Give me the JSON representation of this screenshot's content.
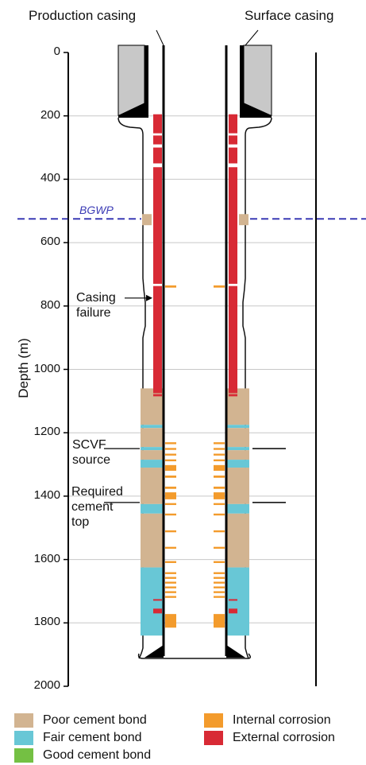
{
  "headers": {
    "left": "Production casing",
    "right": "Surface casing"
  },
  "axis": {
    "label": "Depth (m)",
    "ticks": [
      "0",
      "200",
      "400",
      "600",
      "800",
      "1000",
      "1200",
      "1400",
      "1600",
      "1800",
      "2000"
    ]
  },
  "annotations": {
    "bgwp": "BGWP",
    "casing_failure": [
      "Casing",
      "failure"
    ],
    "scvf": [
      "SCVF",
      "source"
    ],
    "cement_top": [
      "Required",
      "cement",
      "top"
    ]
  },
  "legend": {
    "poor": "Poor cement bond",
    "fair": "Fair cement bond",
    "good": "Good cement bond",
    "internal": "Internal corrosion",
    "external": "External corrosion"
  },
  "colors": {
    "poor": "#d2b491",
    "fair": "#68c7d6",
    "good": "#74c043",
    "internal": "#f39b2c",
    "external": "#d82a35",
    "bgwp": "#3b3bb5",
    "grey_cement": "#c8c8c8"
  },
  "depth_data": {
    "bgwp_depth_m": 525,
    "casing_failure_depth_m": 800,
    "scvf_source_depth_m": 1250,
    "required_cement_top_depth_m": 1420,
    "surface_casing_shoe_m": 200,
    "well_bottom_m": 1900,
    "cement_intervals_m": [
      {
        "top": 510,
        "bottom": 545,
        "bond": "poor"
      },
      {
        "top": 1060,
        "bottom": 1175,
        "bond": "poor"
      },
      {
        "top": 1175,
        "bottom": 1185,
        "bond": "fair"
      },
      {
        "top": 1185,
        "bottom": 1245,
        "bond": "poor"
      },
      {
        "top": 1245,
        "bottom": 1255,
        "bond": "fair"
      },
      {
        "top": 1255,
        "bottom": 1285,
        "bond": "poor"
      },
      {
        "top": 1285,
        "bottom": 1310,
        "bond": "fair"
      },
      {
        "top": 1310,
        "bottom": 1425,
        "bond": "poor"
      },
      {
        "top": 1425,
        "bottom": 1455,
        "bond": "fair"
      },
      {
        "top": 1455,
        "bottom": 1625,
        "bond": "poor"
      },
      {
        "top": 1625,
        "bottom": 1840,
        "bond": "fair"
      }
    ],
    "external_corrosion_m": [
      {
        "top": 195,
        "bottom": 255
      },
      {
        "top": 262,
        "bottom": 290
      },
      {
        "top": 300,
        "bottom": 350
      },
      {
        "top": 362,
        "bottom": 730
      },
      {
        "top": 737,
        "bottom": 1075
      },
      {
        "top": 1078,
        "bottom": 1085
      },
      {
        "top": 1725,
        "bottom": 1730
      },
      {
        "top": 1755,
        "bottom": 1770
      }
    ],
    "internal_corrosion_m": [
      {
        "top": 735,
        "bottom": 742
      },
      {
        "top": 1230,
        "bottom": 1236
      },
      {
        "top": 1248,
        "bottom": 1254
      },
      {
        "top": 1266,
        "bottom": 1272
      },
      {
        "top": 1284,
        "bottom": 1290
      },
      {
        "top": 1302,
        "bottom": 1320
      },
      {
        "top": 1335,
        "bottom": 1342
      },
      {
        "top": 1370,
        "bottom": 1377
      },
      {
        "top": 1388,
        "bottom": 1410
      },
      {
        "top": 1422,
        "bottom": 1428
      },
      {
        "top": 1455,
        "bottom": 1461
      },
      {
        "top": 1508,
        "bottom": 1514
      },
      {
        "top": 1560,
        "bottom": 1566
      },
      {
        "top": 1605,
        "bottom": 1611
      },
      {
        "top": 1640,
        "bottom": 1646
      },
      {
        "top": 1655,
        "bottom": 1661
      },
      {
        "top": 1670,
        "bottom": 1676
      },
      {
        "top": 1685,
        "bottom": 1691
      },
      {
        "top": 1700,
        "bottom": 1706
      },
      {
        "top": 1715,
        "bottom": 1721
      },
      {
        "top": 1772,
        "bottom": 1815
      }
    ]
  }
}
